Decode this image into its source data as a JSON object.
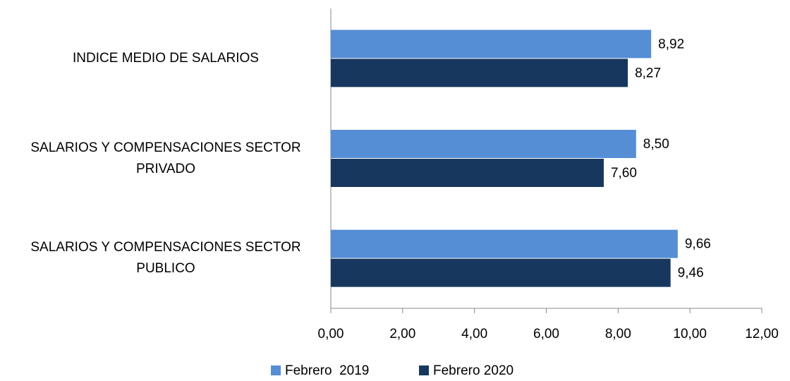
{
  "chart_data": {
    "type": "bar",
    "orientation": "horizontal",
    "categories": [
      "INDICE MEDIO DE SALARIOS",
      "SALARIOS Y COMPENSACIONES SECTOR PRIVADO",
      "SALARIOS Y COMPENSACIONES SECTOR PUBLICO"
    ],
    "series": [
      {
        "name": "Febrero  2019",
        "color": "#558ed5",
        "values": [
          8.92,
          8.5,
          9.66
        ],
        "value_labels": [
          "8,92",
          "8,50",
          "9,66"
        ]
      },
      {
        "name": "Febrero 2020",
        "color": "#17375e",
        "values": [
          8.27,
          7.6,
          9.46
        ],
        "value_labels": [
          "8,27",
          "7,60",
          "9,46"
        ]
      }
    ],
    "xlim": [
      0,
      12
    ],
    "xticks": [
      {
        "value": 0,
        "label": "0,00"
      },
      {
        "value": 2,
        "label": "2,00"
      },
      {
        "value": 4,
        "label": "4,00"
      },
      {
        "value": 6,
        "label": "6,00"
      },
      {
        "value": 8,
        "label": "8,00"
      },
      {
        "value": 10,
        "label": "10,00"
      },
      {
        "value": 12,
        "label": "12,00"
      }
    ],
    "legend": "bottom"
  }
}
